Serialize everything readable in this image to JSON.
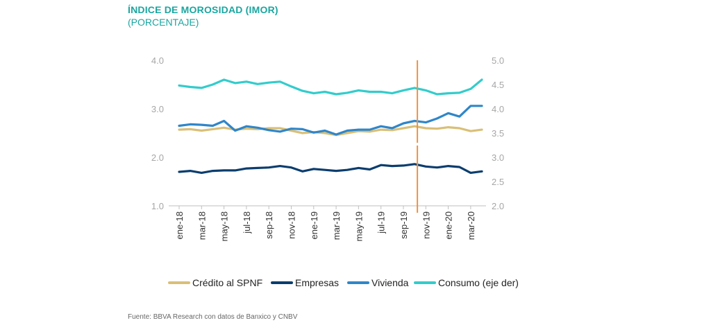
{
  "chart_data": {
    "type": "line",
    "title": "ÍNDICE DE MOROSIDAD (IMOR)",
    "subtitle": "(PORCENTAJE)",
    "source": "Fuente: BBVA Research con datos de Banxico y CNBV",
    "grid": false,
    "legend_position": "bottom",
    "y_left": {
      "ticks": [
        "1.0",
        "2.0",
        "3.0",
        "4.0"
      ],
      "range": [
        1.0,
        4.0
      ]
    },
    "y_right": {
      "ticks": [
        "2.0",
        "2.5",
        "3.0",
        "3.5",
        "4.0",
        "4.5",
        "5.0"
      ],
      "range": [
        2.0,
        5.0
      ]
    },
    "x_tick_labels": [
      "ene-18",
      "mar-18",
      "may-18",
      "jul-18",
      "sep-18",
      "nov-18",
      "ene-19",
      "mar-19",
      "may-19",
      "jul-19",
      "sep-19",
      "nov-19",
      "ene-20",
      "mar-20"
    ],
    "categories": [
      "ene-18",
      "feb-18",
      "mar-18",
      "abr-18",
      "may-18",
      "jun-18",
      "jul-18",
      "ago-18",
      "sep-18",
      "oct-18",
      "nov-18",
      "dic-18",
      "ene-19",
      "feb-19",
      "mar-19",
      "abr-19",
      "may-19",
      "jun-19",
      "jul-19",
      "ago-19",
      "sep-19",
      "oct-19",
      "nov-19",
      "dic-19",
      "ene-20",
      "feb-20",
      "mar-20",
      "abr-20"
    ],
    "vertical_marker_category": "oct-19",
    "series": [
      {
        "name": "Crédito al SPNF",
        "axis": "left",
        "color": "#d9bf77",
        "values": [
          2.57,
          2.58,
          2.55,
          2.58,
          2.61,
          2.57,
          2.59,
          2.58,
          2.6,
          2.6,
          2.55,
          2.5,
          2.52,
          2.5,
          2.46,
          2.5,
          2.54,
          2.53,
          2.57,
          2.56,
          2.6,
          2.64,
          2.6,
          2.59,
          2.62,
          2.6,
          2.54,
          2.57
        ]
      },
      {
        "name": "Empresas",
        "axis": "left",
        "color": "#0b3d6e",
        "values": [
          1.7,
          1.72,
          1.68,
          1.72,
          1.73,
          1.73,
          1.77,
          1.78,
          1.79,
          1.82,
          1.79,
          1.71,
          1.76,
          1.74,
          1.72,
          1.74,
          1.78,
          1.75,
          1.84,
          1.82,
          1.83,
          1.86,
          1.81,
          1.79,
          1.82,
          1.8,
          1.68,
          1.71
        ]
      },
      {
        "name": "Vivienda",
        "axis": "left",
        "color": "#2f86c9",
        "values": [
          2.65,
          2.68,
          2.67,
          2.65,
          2.75,
          2.55,
          2.64,
          2.61,
          2.56,
          2.53,
          2.59,
          2.58,
          2.51,
          2.55,
          2.47,
          2.55,
          2.57,
          2.57,
          2.64,
          2.6,
          2.7,
          2.75,
          2.72,
          2.8,
          2.91,
          2.84,
          3.06,
          3.06
        ]
      },
      {
        "name": "Consumo (eje der)",
        "axis": "right",
        "color": "#33cccc",
        "values": [
          4.48,
          4.45,
          4.43,
          4.5,
          4.6,
          4.53,
          4.56,
          4.51,
          4.54,
          4.56,
          4.46,
          4.37,
          4.32,
          4.35,
          4.3,
          4.33,
          4.38,
          4.35,
          4.35,
          4.32,
          4.38,
          4.43,
          4.38,
          4.3,
          4.32,
          4.33,
          4.41,
          4.6
        ]
      }
    ]
  }
}
